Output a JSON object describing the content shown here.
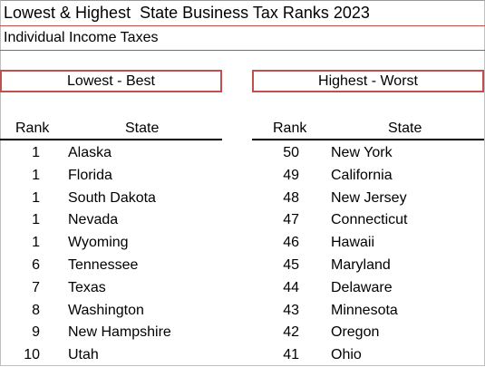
{
  "title": "Lowest & Highest  State Business Tax Ranks 2023",
  "subtitle": "Individual Income Taxes",
  "sections": {
    "lowest_label": "Lowest - Best",
    "highest_label": "Highest - Worst"
  },
  "columns": {
    "rank": "Rank",
    "state": "State"
  },
  "rows": [
    {
      "low_rank": "1",
      "low_state": "Alaska",
      "high_rank": "50",
      "high_state": "New York"
    },
    {
      "low_rank": "1",
      "low_state": "Florida",
      "high_rank": "49",
      "high_state": "California"
    },
    {
      "low_rank": "1",
      "low_state": "South Dakota",
      "high_rank": "48",
      "high_state": "New Jersey"
    },
    {
      "low_rank": "1",
      "low_state": "Nevada",
      "high_rank": "47",
      "high_state": "Connecticut"
    },
    {
      "low_rank": "1",
      "low_state": "Wyoming",
      "high_rank": "46",
      "high_state": "Hawaii"
    },
    {
      "low_rank": "6",
      "low_state": "Tennessee",
      "high_rank": "45",
      "high_state": "Maryland"
    },
    {
      "low_rank": "7",
      "low_state": "Texas",
      "high_rank": "44",
      "high_state": "Delaware"
    },
    {
      "low_rank": "8",
      "low_state": "Washington",
      "high_rank": "43",
      "high_state": "Minnesota"
    },
    {
      "low_rank": "9",
      "low_state": "New Hampshire",
      "high_rank": "42",
      "high_state": "Oregon"
    },
    {
      "low_rank": "10",
      "low_state": "Utah",
      "high_rank": "41",
      "high_state": "Ohio"
    }
  ],
  "colors": {
    "accent_border": "#c0504d",
    "text": "#000000",
    "background": "#ffffff"
  }
}
